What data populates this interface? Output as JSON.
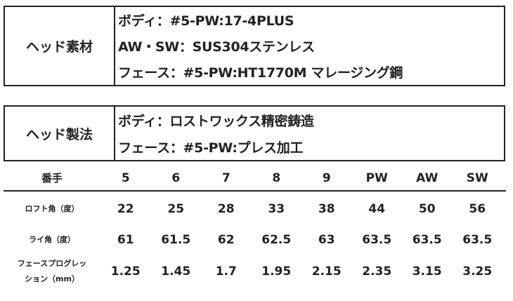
{
  "material": {
    "label": "ヘッド素材",
    "lines": [
      "ボディ：#5-PW:17-4PLUS",
      "AW・SW：SUS304ステンレス",
      "フェース：#5-PW:HT1770M マレージング鋼"
    ]
  },
  "method": {
    "label": "ヘッド製法",
    "lines": [
      "ボディ：ロストワックス精密鋳造",
      "フェース：#5-PW:プレス加工"
    ]
  },
  "spec": {
    "header": {
      "label": "番手",
      "values": [
        "5",
        "6",
        "7",
        "8",
        "9",
        "PW",
        "AW",
        "SW"
      ]
    },
    "rows": [
      {
        "label": "ロフト角（度）",
        "values": [
          "22",
          "25",
          "28",
          "33",
          "38",
          "44",
          "50",
          "56"
        ]
      },
      {
        "label": "ライ角（度）",
        "values": [
          "61",
          "61.5",
          "62",
          "62.5",
          "63",
          "63.5",
          "63.5",
          "63.5"
        ]
      },
      {
        "label_line1": "フェースプログレッ",
        "label_line2": "ション（mm）",
        "values": [
          "1.25",
          "1.45",
          "1.7",
          "1.95",
          "2.15",
          "2.35",
          "3.15",
          "3.25"
        ]
      }
    ]
  }
}
